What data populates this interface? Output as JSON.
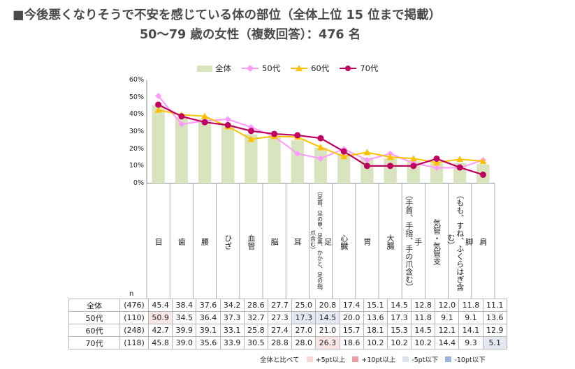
{
  "header": {
    "title_line1": "■今後悪くなりそうで不安を感じている体の部位（全体上位 15 位まで掲載）",
    "title_line2": "50～79 歳の女性（複数回答）：476 名"
  },
  "chart_data": {
    "type": "bar",
    "ylim": [
      0,
      60
    ],
    "yticks": [
      "0%",
      "10%",
      "20%",
      "30%",
      "40%",
      "50%",
      "60%"
    ],
    "categories": [
      "目",
      "歯",
      "腰",
      "ひざ",
      "血管",
      "脳",
      "耳",
      "足",
      "心臓",
      "胃",
      "大腸",
      "手",
      "気管・気管支",
      "脚",
      "肩"
    ],
    "category_notes": [
      "",
      "",
      "",
      "",
      "",
      "",
      "",
      "（足首、足の甲、足裏、かかと、足の指、爪含む）",
      "",
      "",
      "",
      "（手首、手指、手の爪含む）",
      "",
      "（もも、すね、ふくらはぎ含む）",
      ""
    ],
    "series": [
      {
        "name": "全体",
        "kind": "bar",
        "color": "#d7e4bd",
        "values": [
          45.4,
          38.4,
          37.6,
          34.2,
          28.6,
          27.7,
          25.0,
          20.8,
          17.4,
          15.1,
          14.5,
          12.8,
          12.0,
          11.8,
          11.1
        ]
      },
      {
        "name": "50代",
        "kind": "line",
        "color": "#ff99ff",
        "marker": "diamond",
        "values": [
          50.9,
          34.5,
          36.4,
          37.3,
          32.7,
          27.3,
          17.3,
          14.5,
          20.0,
          13.6,
          17.3,
          11.8,
          9.1,
          9.1,
          13.6
        ]
      },
      {
        "name": "60代",
        "kind": "line",
        "color": "#ffc000",
        "marker": "triangle",
        "values": [
          42.7,
          39.9,
          39.1,
          33.1,
          25.8,
          27.4,
          27.0,
          21.0,
          15.7,
          18.1,
          15.3,
          14.5,
          12.1,
          14.1,
          12.9
        ]
      },
      {
        "name": "70代",
        "kind": "line",
        "color": "#c00060",
        "marker": "circle",
        "values": [
          45.8,
          39.0,
          35.6,
          33.9,
          30.5,
          28.8,
          28.0,
          26.3,
          18.6,
          10.2,
          10.2,
          10.2,
          14.4,
          9.3,
          5.1
        ]
      }
    ]
  },
  "table": {
    "n_header": "n",
    "rows": [
      {
        "label": "全体",
        "n": "(476)",
        "values": [
          "45.4",
          "38.4",
          "37.6",
          "34.2",
          "28.6",
          "27.7",
          "25.0",
          "20.8",
          "17.4",
          "15.1",
          "14.5",
          "12.8",
          "12.0",
          "11.8",
          "11.1"
        ],
        "marks": [
          "",
          "",
          "",
          "",
          "",
          "",
          "",
          "",
          "",
          "",
          "",
          "",
          "",
          "",
          ""
        ]
      },
      {
        "label": "50代",
        "n": "(110)",
        "values": [
          "50.9",
          "34.5",
          "36.4",
          "37.3",
          "32.7",
          "27.3",
          "17.3",
          "14.5",
          "20.0",
          "13.6",
          "17.3",
          "11.8",
          "9.1",
          "9.1",
          "13.6"
        ],
        "marks": [
          "hi5",
          "",
          "",
          "",
          "",
          "",
          "lo5",
          "lo5",
          "",
          "",
          "",
          "",
          "",
          "",
          ""
        ]
      },
      {
        "label": "60代",
        "n": "(248)",
        "values": [
          "42.7",
          "39.9",
          "39.1",
          "33.1",
          "25.8",
          "27.4",
          "27.0",
          "21.0",
          "15.7",
          "18.1",
          "15.3",
          "14.5",
          "12.1",
          "14.1",
          "12.9"
        ],
        "marks": [
          "",
          "",
          "",
          "",
          "",
          "",
          "",
          "",
          "",
          "",
          "",
          "",
          "",
          "",
          ""
        ]
      },
      {
        "label": "70代",
        "n": "(118)",
        "values": [
          "45.8",
          "39.0",
          "35.6",
          "33.9",
          "30.5",
          "28.8",
          "28.0",
          "26.3",
          "18.6",
          "10.2",
          "10.2",
          "10.2",
          "14.4",
          "9.3",
          "5.1"
        ],
        "marks": [
          "",
          "",
          "",
          "",
          "",
          "",
          "",
          "hi5",
          "",
          "",
          "",
          "",
          "",
          "",
          "lo5"
        ]
      }
    ]
  },
  "key_legend": {
    "prefix": "全体と比べて",
    "items": [
      {
        "label": "+5pt以上",
        "color": "#f7d7d7"
      },
      {
        "label": "+10pt以上",
        "color": "#e8a0a0"
      },
      {
        "label": "-5pt以下",
        "color": "#dde3f0"
      },
      {
        "label": "-10pt以下",
        "color": "#9db3dd"
      }
    ]
  }
}
